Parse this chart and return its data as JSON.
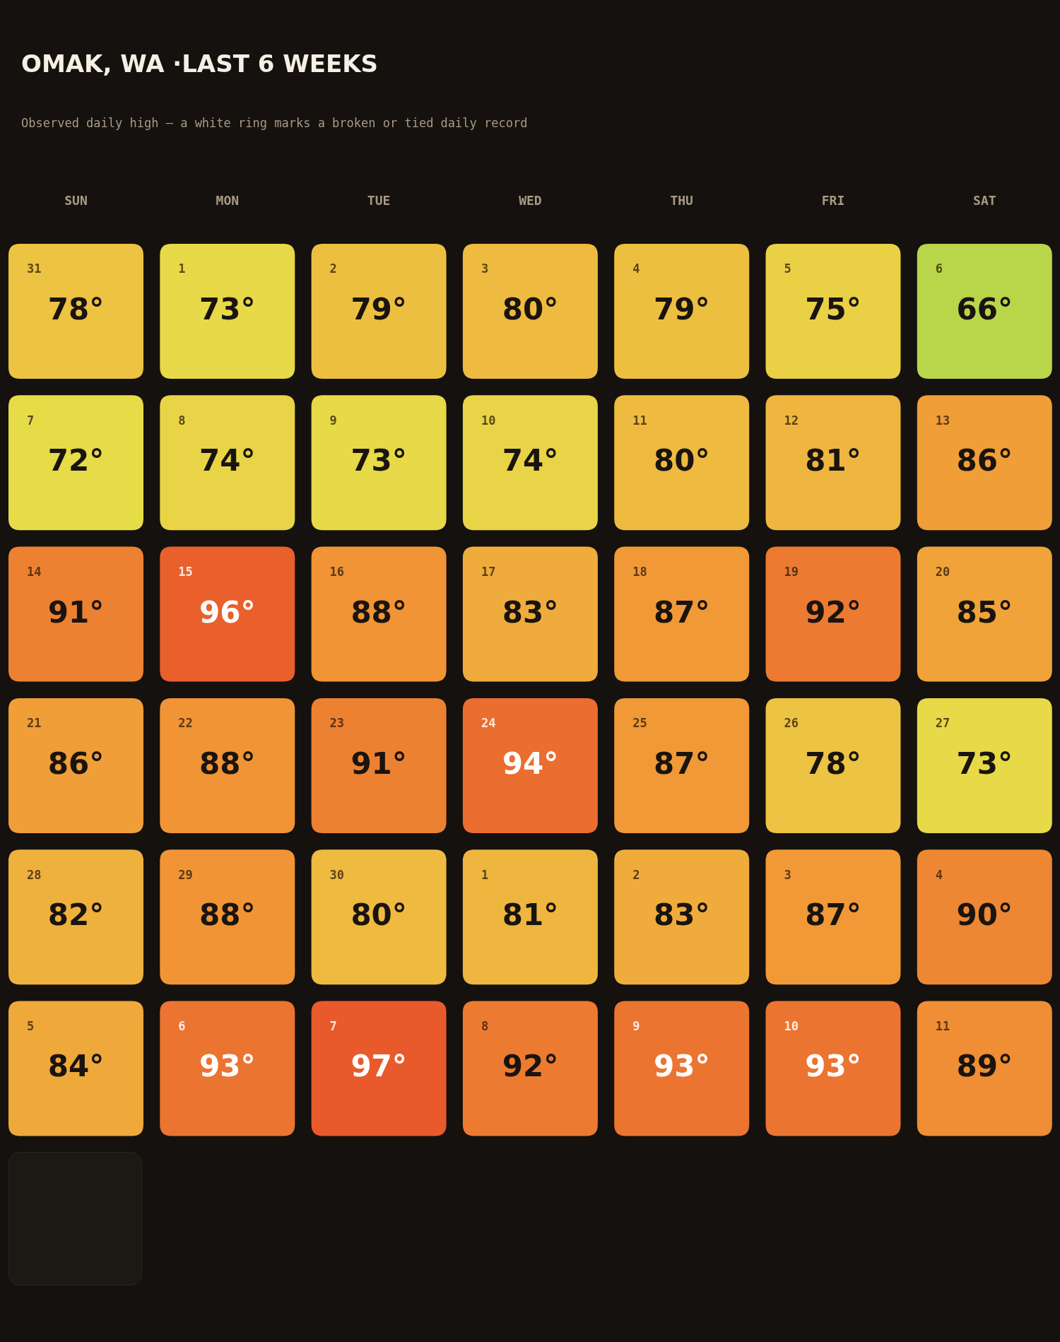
{
  "chart_data": {
    "type": "heatmap",
    "title": "OMAK, WA ·LAST 6 WEEKS",
    "subtitle": "Observed daily high — a white ring marks a broken or tied daily record",
    "categories": [
      "SUN",
      "MON",
      "TUE",
      "WED",
      "THU",
      "FRI",
      "SAT"
    ],
    "y_categories": [
      null,
      null,
      null,
      null,
      null,
      null
    ],
    "cells": [
      [
        78,
        73,
        79,
        80,
        79,
        75,
        66
      ],
      [
        72,
        74,
        73,
        74,
        80,
        81,
        86
      ],
      [
        91,
        96,
        88,
        83,
        87,
        92,
        85
      ],
      [
        86,
        88,
        91,
        94,
        87,
        78,
        73
      ],
      [
        82,
        88,
        80,
        81,
        83,
        87,
        90
      ],
      [
        84,
        93,
        97,
        92,
        93,
        93,
        89
      ]
    ],
    "cell_labels": [
      [
        "78°",
        "73°",
        "79°",
        "80°",
        "79°",
        "75°",
        "66°"
      ],
      [
        "72°",
        "74°",
        "73°",
        "74°",
        "80°",
        "81°",
        "86°"
      ],
      [
        "91°",
        "96°",
        "88°",
        "83°",
        "87°",
        "92°",
        "85°"
      ],
      [
        "86°",
        "88°",
        "91°",
        "94°",
        "87°",
        "78°",
        "73°"
      ],
      [
        "82°",
        "88°",
        "80°",
        "81°",
        "83°",
        "87°",
        "90°"
      ],
      [
        "84°",
        "93°",
        "97°",
        "92°",
        "93°",
        "93°",
        "89°"
      ]
    ],
    "annotations": [
      "31",
      "1",
      "2",
      "3",
      "4",
      "5",
      "6",
      "7",
      "8",
      "9",
      "10",
      "11",
      "12",
      "13",
      "14",
      "15",
      "16",
      "17",
      "18",
      "19",
      "20",
      "21",
      "22",
      "23",
      "24",
      "25",
      "26",
      "27",
      "28",
      "29",
      "30",
      "1",
      "2",
      "3",
      "4",
      "5",
      "6",
      "7",
      "8",
      "9",
      "10",
      "11"
    ]
  }
}
